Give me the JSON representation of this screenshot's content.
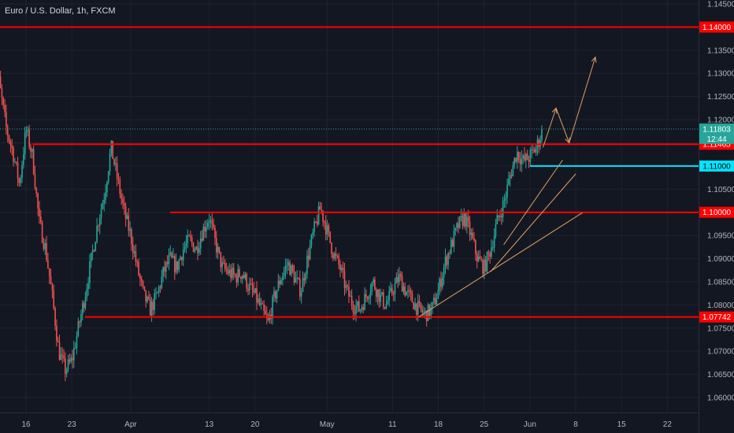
{
  "header": {
    "title": "Euro / U.S. Dollar, 1h, FXCM"
  },
  "colors": {
    "background": "#131722",
    "grid": "#1f2330",
    "axis_text": "#b2b5be",
    "bull": "#26a69a",
    "bear": "#ef5350",
    "level": "#ff0000",
    "support_cyan": "#00e5ff",
    "trend": "#e0a060",
    "price_line": "#26a69a"
  },
  "chart_data": {
    "type": "candlestick",
    "title": "Euro / U.S. Dollar, 1h, FXCM",
    "ylim": [
      1.0565,
      1.1455
    ],
    "y_ticks": [
      "1.14500",
      "1.14000",
      "1.13500",
      "1.13000",
      "1.12500",
      "1.12000",
      "1.11500",
      "1.11000",
      "1.10500",
      "1.10000",
      "1.09500",
      "1.09000",
      "1.08500",
      "1.08000",
      "1.07500",
      "1.07000",
      "1.06500",
      "1.06000"
    ],
    "x_ticks": [
      "16",
      "23",
      "Apr",
      "13",
      "20",
      "May",
      "11",
      "18",
      "25",
      "Jun",
      "8",
      "15",
      "22"
    ],
    "x_tick_days": [
      -16,
      -9,
      0,
      12,
      19,
      30,
      40,
      47,
      54,
      61,
      68,
      75,
      82
    ],
    "x_range_days": [
      -21,
      90
    ],
    "horizontal_levels": [
      {
        "price": 1.14,
        "label": "1.14000",
        "x_from_day": -21,
        "color": "#ff0000"
      },
      {
        "price": 1.1147,
        "label": "1.11465",
        "x_from_day": -15,
        "color": "#ff0000"
      },
      {
        "price": 1.1,
        "label": "1.10000",
        "x_from_day": 6,
        "color": "#ff0000"
      },
      {
        "price": 1.0774,
        "label": "1.07742",
        "x_from_day": -7,
        "color": "#ff0000"
      },
      {
        "price": 1.11,
        "label": "1.11000",
        "x_from_day": 61,
        "color": "#00e5ff"
      }
    ],
    "current_price": {
      "price": 1.118,
      "label": "1.11803",
      "countdown": "12:44"
    },
    "price_path": [
      [
        -21,
        1.137
      ],
      [
        -20,
        1.127
      ],
      [
        -19,
        1.118
      ],
      [
        -18,
        1.113
      ],
      [
        -17,
        1.106
      ],
      [
        -16,
        1.118
      ],
      [
        -15,
        1.112
      ],
      [
        -14,
        1.098
      ],
      [
        -13,
        1.092
      ],
      [
        -12,
        1.082
      ],
      [
        -11,
        1.07
      ],
      [
        -10,
        1.066
      ],
      [
        -9,
        1.068
      ],
      [
        -8,
        1.075
      ],
      [
        -7,
        1.082
      ],
      [
        -6,
        1.09
      ],
      [
        -5,
        1.098
      ],
      [
        -4,
        1.104
      ],
      [
        -3,
        1.114
      ],
      [
        -2,
        1.107
      ],
      [
        -1,
        1.1
      ],
      [
        0,
        1.095
      ],
      [
        1,
        1.088
      ],
      [
        2,
        1.082
      ],
      [
        3,
        1.079
      ],
      [
        4,
        1.082
      ],
      [
        5,
        1.087
      ],
      [
        6,
        1.09
      ],
      [
        7,
        1.088
      ],
      [
        8,
        1.092
      ],
      [
        9,
        1.094
      ],
      [
        10,
        1.092
      ],
      [
        11,
        1.096
      ],
      [
        12,
        1.099
      ],
      [
        13,
        1.093
      ],
      [
        14,
        1.088
      ],
      [
        15,
        1.087
      ],
      [
        16,
        1.086
      ],
      [
        17,
        1.087
      ],
      [
        18,
        1.084
      ],
      [
        19,
        1.082
      ],
      [
        20,
        1.079
      ],
      [
        21,
        1.076
      ],
      [
        22,
        1.082
      ],
      [
        23,
        1.086
      ],
      [
        24,
        1.089
      ],
      [
        25,
        1.086
      ],
      [
        26,
        1.083
      ],
      [
        27,
        1.09
      ],
      [
        28,
        1.096
      ],
      [
        29,
        1.101
      ],
      [
        30,
        1.096
      ],
      [
        31,
        1.091
      ],
      [
        32,
        1.088
      ],
      [
        33,
        1.083
      ],
      [
        34,
        1.08
      ],
      [
        35,
        1.079
      ],
      [
        36,
        1.082
      ],
      [
        37,
        1.085
      ],
      [
        38,
        1.082
      ],
      [
        39,
        1.08
      ],
      [
        40,
        1.083
      ],
      [
        41,
        1.086
      ],
      [
        42,
        1.083
      ],
      [
        43,
        1.081
      ],
      [
        44,
        1.079
      ],
      [
        45,
        1.078
      ],
      [
        46,
        1.079
      ],
      [
        47,
        1.083
      ],
      [
        48,
        1.089
      ],
      [
        49,
        1.093
      ],
      [
        50,
        1.097
      ],
      [
        51,
        1.099
      ],
      [
        52,
        1.095
      ],
      [
        53,
        1.09
      ],
      [
        54,
        1.088
      ],
      [
        55,
        1.092
      ],
      [
        56,
        1.098
      ],
      [
        57,
        1.102
      ],
      [
        58,
        1.108
      ],
      [
        59,
        1.113
      ],
      [
        60,
        1.111
      ],
      [
        61,
        1.112
      ],
      [
        62,
        1.114
      ],
      [
        63,
        1.118
      ]
    ],
    "trend_lines": [
      {
        "from": [
          44,
          1.0774
        ],
        "to": [
          69,
          1.0999
        ]
      },
      {
        "from": [
          55,
          1.0872
        ],
        "to": [
          68,
          1.1083
        ]
      },
      {
        "from": [
          57,
          1.093
        ],
        "to": [
          66,
          1.1113
        ]
      }
    ],
    "projection_path": [
      [
        63,
        1.114
      ],
      [
        65,
        1.1225
      ],
      [
        67,
        1.115
      ],
      [
        71,
        1.1335
      ]
    ]
  }
}
